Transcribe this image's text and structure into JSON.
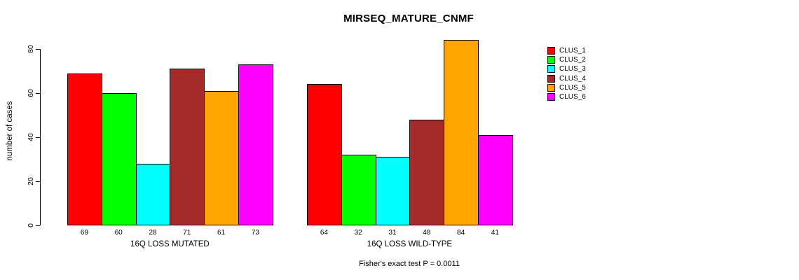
{
  "chart_data": {
    "type": "bar",
    "title": "MIRSEQ_MATURE_CNMF",
    "ylabel": "number of cases",
    "xlabel": "",
    "ylim": [
      0,
      85
    ],
    "yticks": [
      0,
      20,
      40,
      60,
      80
    ],
    "grid": false,
    "legend_position": "right",
    "clusters": [
      "CLUS_1",
      "CLUS_2",
      "CLUS_3",
      "CLUS_4",
      "CLUS_5",
      "CLUS_6"
    ],
    "colors": [
      "#ff0000",
      "#00ff00",
      "#00ffff",
      "#a52a2a",
      "#ffa500",
      "#ff00ff"
    ],
    "groups": [
      {
        "label": "16Q LOSS MUTATED",
        "values": [
          69,
          60,
          28,
          71,
          61,
          73
        ]
      },
      {
        "label": "16Q LOSS WILD-TYPE",
        "values": [
          64,
          32,
          31,
          48,
          84,
          41
        ]
      }
    ],
    "annotation": "Fisher's exact test P = 0.0011"
  }
}
